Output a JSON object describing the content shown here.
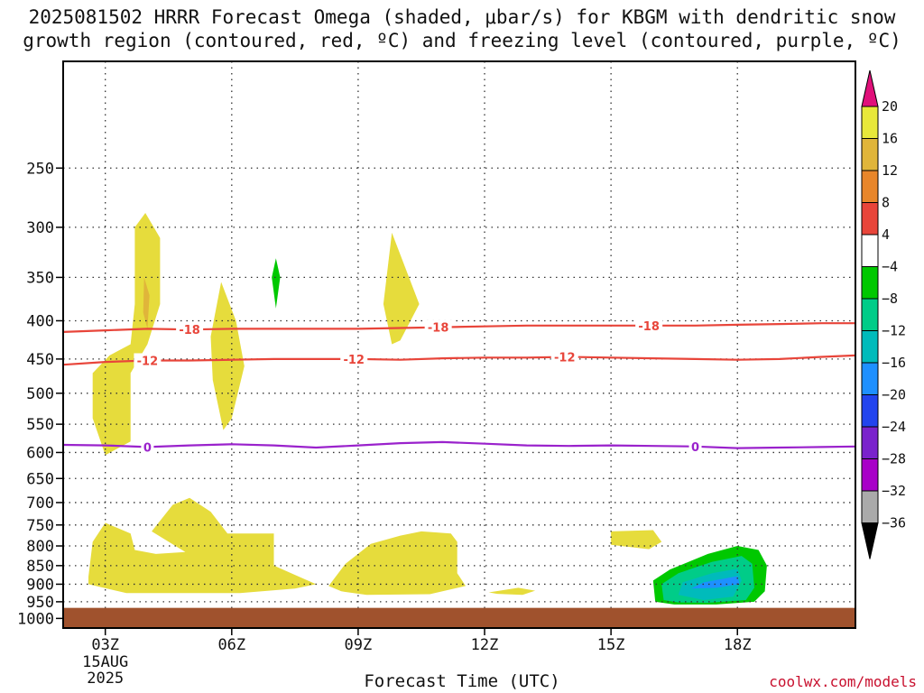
{
  "title_line1": "2025081502 HRRR Forecast Omega (shaded, μbar/s) for KBGM with dendritic snow",
  "title_line2": "growth region (contoured, red, ºC) and freezing level (contoured, purple, ºC)",
  "credit": "coolwx.com/models",
  "chart_data": {
    "type": "heatmap",
    "title": "2025081502 HRRR Forecast Omega (shaded, μbar/s) for KBGM with dendritic snow growth region (contoured, red, ºC) and freezing level (contoured, purple, ºC)",
    "xlabel": "Forecast Time (UTC)",
    "ylabel": "",
    "x_range_hours_utc": [
      2.0,
      20.8
    ],
    "y_range_mb": [
      1030,
      180
    ],
    "y_scale": "log-pressure",
    "x_ticks": [
      {
        "hour": 3,
        "label": "03Z",
        "sub": [
          "15AUG",
          "2025"
        ]
      },
      {
        "hour": 6,
        "label": "06Z"
      },
      {
        "hour": 9,
        "label": "09Z"
      },
      {
        "hour": 12,
        "label": "12Z"
      },
      {
        "hour": 15,
        "label": "15Z"
      },
      {
        "hour": 18,
        "label": "18Z"
      }
    ],
    "y_ticks": [
      250,
      300,
      350,
      400,
      450,
      500,
      550,
      600,
      650,
      700,
      750,
      800,
      850,
      900,
      950,
      1000
    ],
    "grid": true,
    "colorbar": {
      "levels": [
        "20",
        "16",
        "12",
        "8",
        "4",
        "−4",
        "−8",
        "−12",
        "−16",
        "−20",
        "−24",
        "−28",
        "−32",
        "−36"
      ],
      "colors": [
        "#e8e83a",
        "#e0b53a",
        "#e8862a",
        "#e8453a",
        "#ffffff",
        "#00c800",
        "#00cc88",
        "#00bbbb",
        "#1e90ff",
        "#2244ee",
        "#7a22cc",
        "#a800c8",
        "#aaaaaa"
      ],
      "top_arrow_color": "#e0107a",
      "bottom_arrow_color": "#000000"
    },
    "ground_color": "#a0522d",
    "omega_regions": [
      {
        "color": "#e6dc3c",
        "points": [
          [
            3.6,
            580
          ],
          [
            3.0,
            605
          ],
          [
            2.7,
            540
          ],
          [
            2.7,
            470
          ],
          [
            3.1,
            445
          ],
          [
            3.6,
            430
          ],
          [
            3.7,
            380
          ],
          [
            3.7,
            300
          ],
          [
            3.95,
            287
          ],
          [
            4.3,
            310
          ],
          [
            4.3,
            380
          ],
          [
            4.0,
            430
          ],
          [
            3.6,
            470
          ],
          [
            3.6,
            530
          ]
        ]
      },
      {
        "color": "#e0b53a",
        "points": [
          [
            3.92,
            350
          ],
          [
            4.05,
            370
          ],
          [
            4.0,
            410
          ],
          [
            3.9,
            390
          ]
        ]
      },
      {
        "color": "#e6dc3c",
        "points": [
          [
            5.8,
            560
          ],
          [
            5.55,
            480
          ],
          [
            5.5,
            420
          ],
          [
            5.75,
            355
          ],
          [
            6.1,
            400
          ],
          [
            6.3,
            460
          ],
          [
            6.0,
            540
          ]
        ]
      },
      {
        "color": "#00c800",
        "points": [
          [
            7.05,
            330
          ],
          [
            7.15,
            350
          ],
          [
            7.05,
            385
          ],
          [
            6.95,
            350
          ]
        ]
      },
      {
        "color": "#e6dc3c",
        "points": [
          [
            9.8,
            430
          ],
          [
            9.6,
            380
          ],
          [
            9.8,
            305
          ],
          [
            10.45,
            380
          ],
          [
            10.0,
            425
          ]
        ]
      },
      {
        "color": "#e6dc3c",
        "points": [
          [
            2.6,
            880
          ],
          [
            2.7,
            790
          ],
          [
            3.0,
            745
          ],
          [
            3.6,
            770
          ],
          [
            3.7,
            810
          ],
          [
            4.2,
            820
          ],
          [
            4.9,
            815
          ],
          [
            4.1,
            765
          ],
          [
            4.6,
            705
          ],
          [
            5.0,
            690
          ],
          [
            5.5,
            720
          ],
          [
            5.9,
            770
          ],
          [
            7.0,
            770
          ],
          [
            7.0,
            850
          ],
          [
            8.0,
            900
          ],
          [
            7.5,
            912
          ],
          [
            6.2,
            925
          ],
          [
            3.5,
            925
          ],
          [
            2.6,
            900
          ]
        ]
      },
      {
        "color": "#e6dc3c",
        "points": [
          [
            8.3,
            905
          ],
          [
            8.7,
            845
          ],
          [
            9.3,
            795
          ],
          [
            10.0,
            775
          ],
          [
            10.5,
            765
          ],
          [
            11.2,
            770
          ],
          [
            11.35,
            790
          ],
          [
            11.35,
            870
          ],
          [
            11.55,
            905
          ],
          [
            10.7,
            928
          ],
          [
            9.2,
            930
          ],
          [
            8.6,
            920
          ]
        ]
      },
      {
        "color": "#e6dc3c",
        "points": [
          [
            12.1,
            923
          ],
          [
            12.8,
            910
          ],
          [
            13.2,
            918
          ],
          [
            12.9,
            930
          ],
          [
            12.3,
            927
          ]
        ]
      },
      {
        "color": "#e6dc3c",
        "points": [
          [
            15.0,
            765
          ],
          [
            16.0,
            762
          ],
          [
            16.2,
            790
          ],
          [
            15.9,
            808
          ],
          [
            15.0,
            797
          ]
        ]
      },
      {
        "color": "#00c800",
        "points": [
          [
            16.05,
            950
          ],
          [
            16.0,
            890
          ],
          [
            16.4,
            860
          ],
          [
            17.3,
            820
          ],
          [
            18.0,
            800
          ],
          [
            18.5,
            810
          ],
          [
            18.7,
            850
          ],
          [
            18.65,
            920
          ],
          [
            18.4,
            950
          ],
          [
            17.5,
            958
          ],
          [
            16.5,
            958
          ]
        ]
      },
      {
        "color": "#00cc88",
        "points": [
          [
            16.25,
            945
          ],
          [
            16.2,
            900
          ],
          [
            16.6,
            870
          ],
          [
            17.4,
            840
          ],
          [
            18.1,
            825
          ],
          [
            18.35,
            845
          ],
          [
            18.4,
            910
          ],
          [
            18.2,
            945
          ],
          [
            17.3,
            953
          ],
          [
            16.6,
            952
          ]
        ]
      },
      {
        "color": "#00bbbb",
        "points": [
          [
            16.6,
            930
          ],
          [
            16.7,
            895
          ],
          [
            17.4,
            870
          ],
          [
            18.0,
            858
          ],
          [
            18.1,
            890
          ],
          [
            17.9,
            935
          ],
          [
            17.2,
            945
          ]
        ]
      },
      {
        "color": "#1e90ff",
        "points": [
          [
            16.9,
            912
          ],
          [
            17.2,
            895
          ],
          [
            18.0,
            878
          ],
          [
            18.05,
            900
          ],
          [
            17.5,
            910
          ]
        ]
      }
    ],
    "contours": [
      {
        "name": "-18",
        "color": "#e8453a",
        "label": "-18",
        "points": [
          [
            2.0,
            414
          ],
          [
            3.0,
            412
          ],
          [
            4.0,
            410
          ],
          [
            5.0,
            411
          ],
          [
            6.0,
            410
          ],
          [
            7.0,
            410
          ],
          [
            8.0,
            410
          ],
          [
            9.0,
            410
          ],
          [
            10.0,
            409
          ],
          [
            11.0,
            408
          ],
          [
            12.0,
            407
          ],
          [
            13.0,
            406
          ],
          [
            14.0,
            406
          ],
          [
            15.0,
            406
          ],
          [
            16.0,
            406
          ],
          [
            17.0,
            406
          ],
          [
            18.0,
            405
          ],
          [
            19.0,
            404
          ],
          [
            20.0,
            403
          ],
          [
            20.8,
            403
          ]
        ],
        "label_positions": [
          5.0,
          10.9,
          15.9
        ]
      },
      {
        "name": "-12",
        "color": "#e8453a",
        "label": "-12",
        "points": [
          [
            2.0,
            458
          ],
          [
            3.0,
            454
          ],
          [
            4.0,
            452
          ],
          [
            5.0,
            452
          ],
          [
            6.0,
            451
          ],
          [
            7.0,
            450
          ],
          [
            8.0,
            450
          ],
          [
            9.0,
            450
          ],
          [
            10.0,
            451
          ],
          [
            11.0,
            449
          ],
          [
            12.0,
            448
          ],
          [
            13.0,
            448
          ],
          [
            14.0,
            447
          ],
          [
            15.0,
            448
          ],
          [
            16.0,
            449
          ],
          [
            17.0,
            450
          ],
          [
            18.0,
            451
          ],
          [
            19.0,
            450
          ],
          [
            20.0,
            447
          ],
          [
            20.8,
            445
          ]
        ],
        "label_positions": [
          4.0,
          8.9,
          13.9
        ]
      },
      {
        "name": "0",
        "color": "#9a22cc",
        "label": "0",
        "points": [
          [
            2.0,
            586
          ],
          [
            3.0,
            587
          ],
          [
            4.0,
            590
          ],
          [
            5.0,
            587
          ],
          [
            6.0,
            585
          ],
          [
            7.0,
            587
          ],
          [
            8.0,
            591
          ],
          [
            9.0,
            587
          ],
          [
            10.0,
            583
          ],
          [
            11.0,
            581
          ],
          [
            12.0,
            584
          ],
          [
            13.0,
            587
          ],
          [
            14.0,
            588
          ],
          [
            15.0,
            587
          ],
          [
            16.0,
            588
          ],
          [
            17.0,
            589
          ],
          [
            18.0,
            592
          ],
          [
            19.0,
            591
          ],
          [
            20.0,
            590
          ],
          [
            20.8,
            589
          ]
        ],
        "label_positions": [
          4.0,
          17.0
        ]
      }
    ]
  }
}
